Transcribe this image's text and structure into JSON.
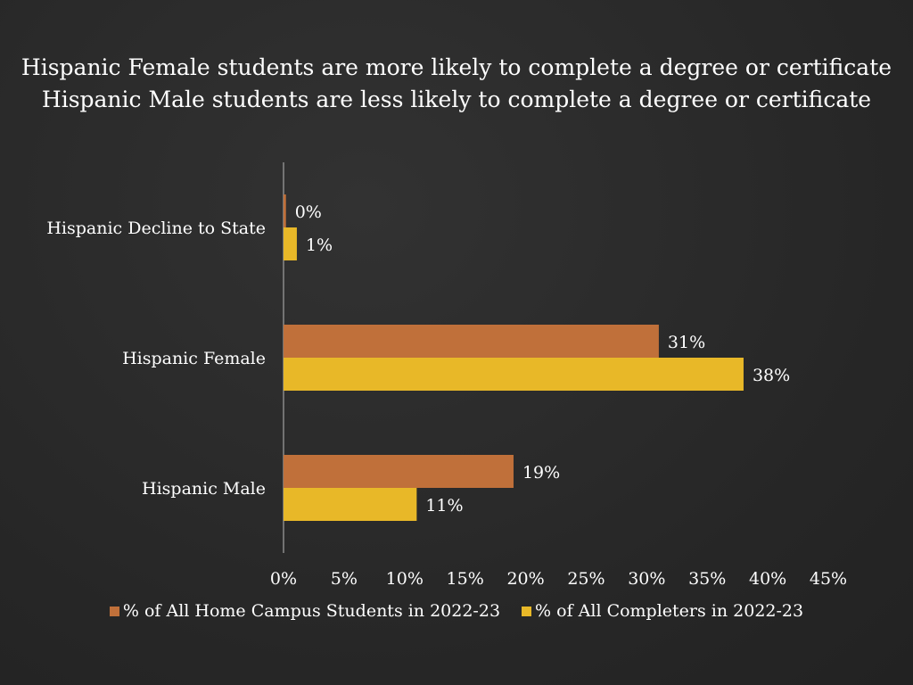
{
  "chart_data": {
    "type": "bar",
    "orientation": "horizontal",
    "title_lines": [
      "Hispanic Female students are more likely to complete a degree or certificate",
      "Hispanic Male students are less likely to complete a degree or certificate"
    ],
    "categories": [
      "Hispanic Decline to State",
      "Hispanic Female",
      "Hispanic Male"
    ],
    "series": [
      {
        "name": "% of All Home Campus Students in 2022-23",
        "color": "#c0703a",
        "values": [
          0.2,
          31,
          19
        ],
        "labels": [
          "0%",
          "31%",
          "19%"
        ]
      },
      {
        "name": "% of All Completers in 2022-23",
        "color": "#e8b828",
        "values": [
          1.1,
          38,
          11
        ],
        "labels": [
          "1%",
          "38%",
          "11%"
        ]
      }
    ],
    "xlim": [
      0,
      45
    ],
    "x_ticks": [
      "0%",
      "5%",
      "10%",
      "15%",
      "20%",
      "25%",
      "30%",
      "35%",
      "40%",
      "45%"
    ],
    "grid": false,
    "legend_position": "bottom"
  }
}
